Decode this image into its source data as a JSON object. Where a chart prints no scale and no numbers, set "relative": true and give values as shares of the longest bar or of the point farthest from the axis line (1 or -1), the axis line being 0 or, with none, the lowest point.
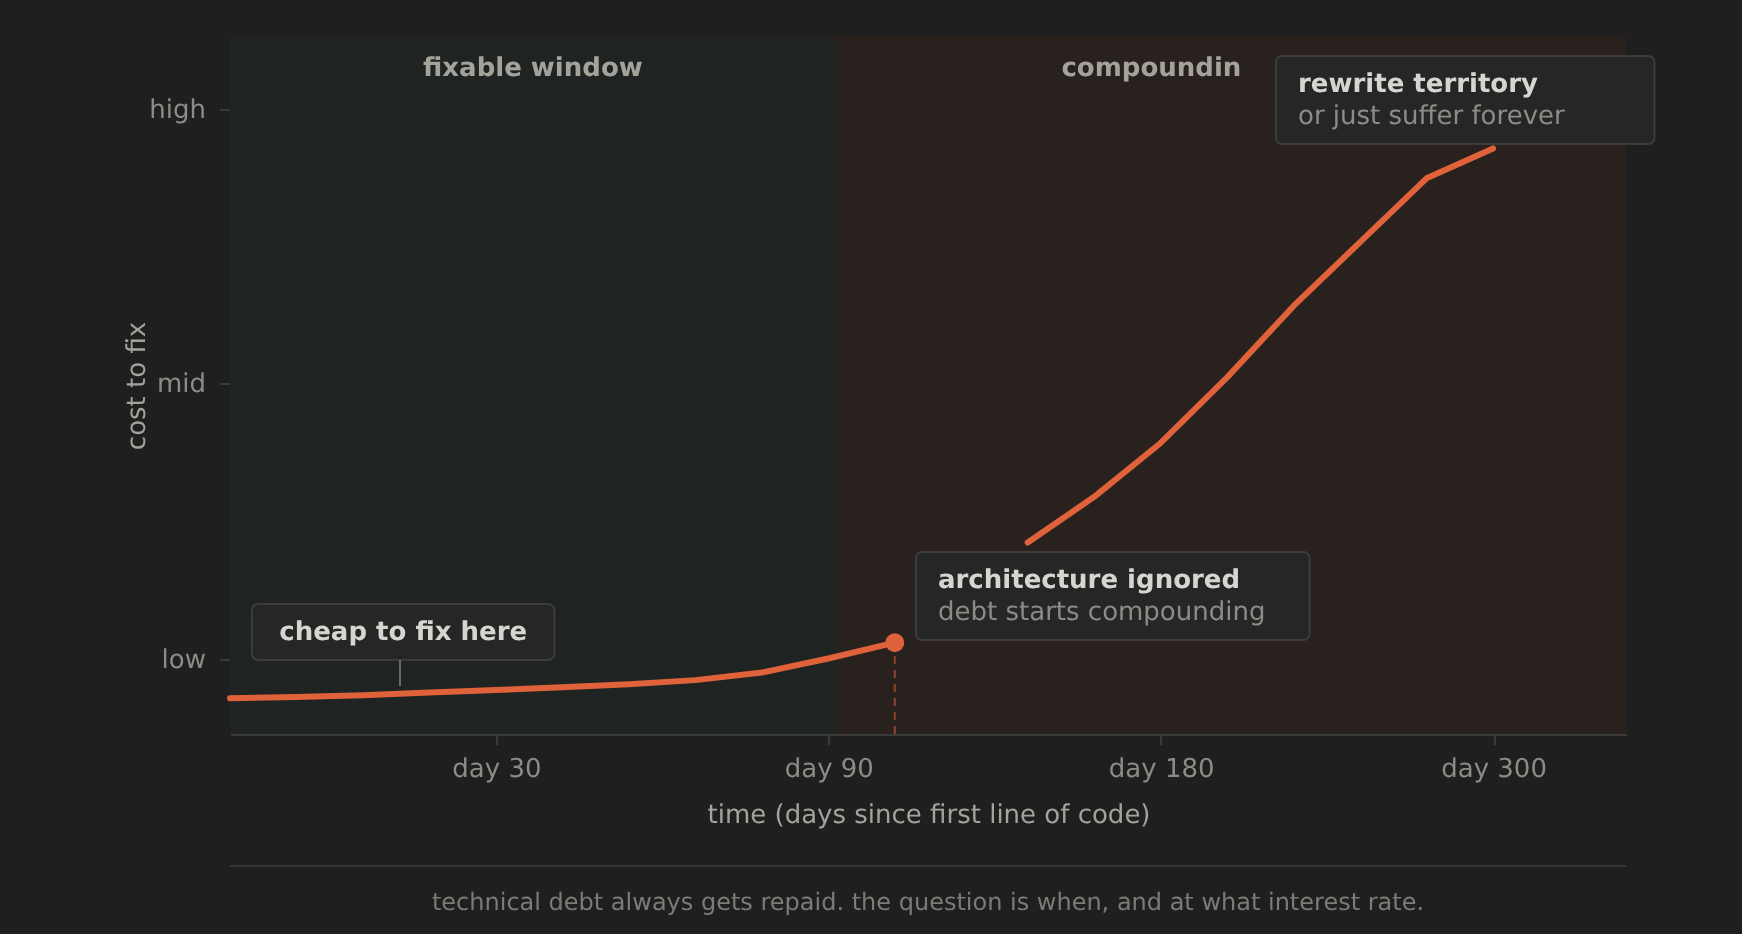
{
  "chart_data": {
    "type": "line",
    "xlabel": "time (days since first line of code)",
    "ylabel": "cost to fix",
    "relative": true,
    "categories": [
      null,
      null,
      null,
      null,
      "day 30",
      null,
      null,
      null,
      null,
      "day 90",
      null,
      null,
      null,
      null,
      "day 180",
      null,
      null,
      null,
      null,
      "day 300",
      null,
      null
    ],
    "series": [
      {
        "color": "#e0623a",
        "values": [
          0.061,
          0.063,
          0.066,
          0.071,
          0.075,
          0.08,
          0.085,
          0.092,
          0.105,
          0.129,
          0.156,
          null,
          0.327,
          0.405,
          0.497,
          0.609,
          0.731,
          0.84,
          0.949,
          1,
          null,
          null
        ]
      },
      {
        "type": "lollipop",
        "color": "#e0623a",
        "line_style": "dashed",
        "values": [
          null,
          null,
          null,
          null,
          null,
          null,
          null,
          null,
          null,
          null,
          0.156,
          null,
          null,
          null,
          null,
          null,
          null,
          null,
          null,
          null,
          null,
          null
        ]
      }
    ],
    "annotations": [
      "fixable window",
      "compoundin",
      "high",
      "mid",
      "low",
      "cheap to fix here",
      "architecture ignored\ndebt starts compounding",
      "rewrite territory\nor just suffer forever",
      "technical debt always gets repaid. the question is when, and at what interest rate."
    ]
  }
}
